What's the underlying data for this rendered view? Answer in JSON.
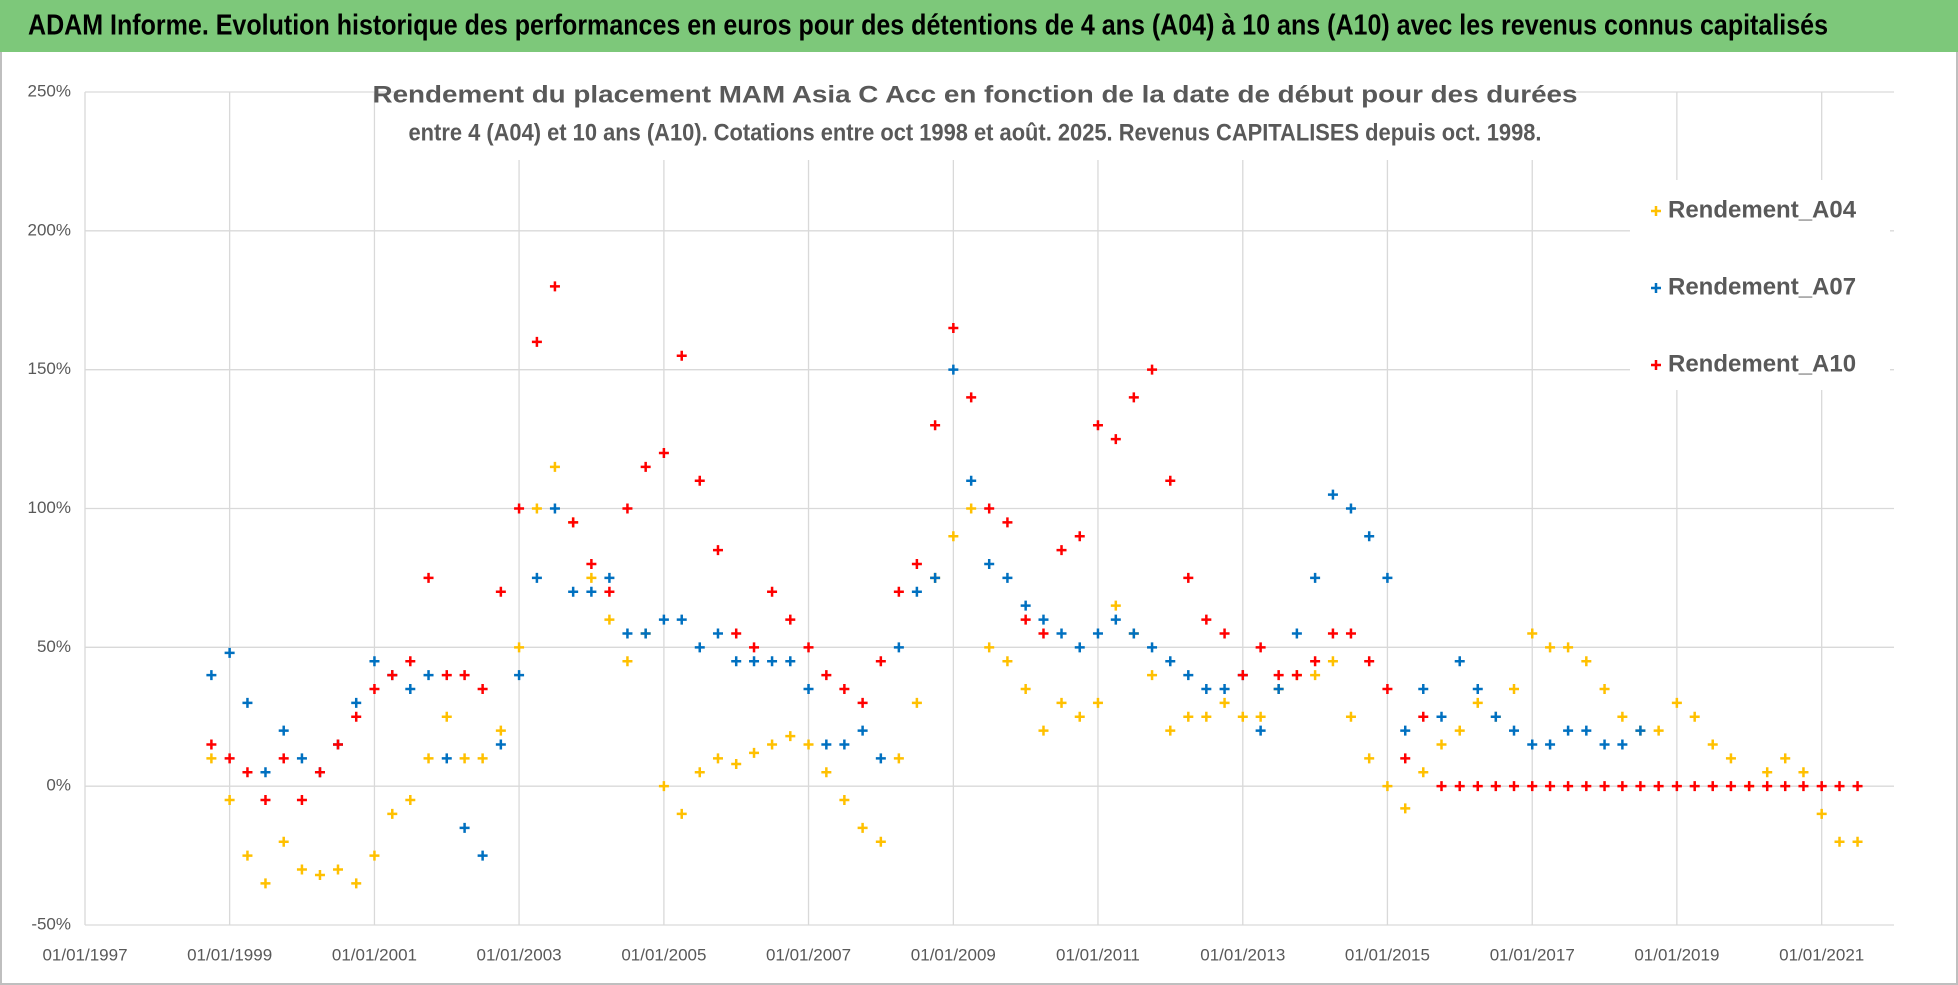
{
  "chart_data": {
    "type": "scatter",
    "banner": "ADAM Informe. Evolution historique des performances en euros pour des détentions de 4 ans (A04) à 10 ans (A10) avec les revenus connus capitalisés",
    "title": [
      "Rendement du placement MAM Asia C Acc en fonction de la date de début pour des durées",
      "entre 4 (A04) et 10 ans (A10). Cotations entre oct 1998 et août. 2025. Revenus CAPITALISES depuis oct. 1998."
    ],
    "x": [
      "1998-10-01",
      "1999-01-01",
      "1999-04-01",
      "1999-07-01",
      "1999-10-01",
      "2000-01-01",
      "2000-04-01",
      "2000-07-01",
      "2000-10-01",
      "2001-01-01",
      "2001-04-01",
      "2001-07-01",
      "2001-10-01",
      "2002-01-01",
      "2002-04-01",
      "2002-07-01",
      "2002-10-01",
      "2003-01-01",
      "2003-04-01",
      "2003-07-01",
      "2003-10-01",
      "2004-01-01",
      "2004-04-01",
      "2004-07-01",
      "2004-10-01",
      "2005-01-01",
      "2005-04-01",
      "2005-07-01",
      "2005-10-01",
      "2006-01-01",
      "2006-04-01",
      "2006-07-01",
      "2006-10-01",
      "2007-01-01",
      "2007-04-01",
      "2007-07-01",
      "2007-10-01",
      "2008-01-01",
      "2008-04-01",
      "2008-07-01",
      "2008-10-01",
      "2009-01-01",
      "2009-04-01",
      "2009-07-01",
      "2009-10-01",
      "2010-01-01",
      "2010-04-01",
      "2010-07-01",
      "2010-10-01",
      "2011-01-01",
      "2011-04-01",
      "2011-07-01",
      "2011-10-01",
      "2012-01-01",
      "2012-04-01",
      "2012-07-01",
      "2012-10-01",
      "2013-01-01",
      "2013-04-01",
      "2013-07-01",
      "2013-10-01",
      "2014-01-01",
      "2014-04-01",
      "2014-07-01",
      "2014-10-01",
      "2015-01-01",
      "2015-04-01",
      "2015-07-01",
      "2015-10-01",
      "2016-01-01",
      "2016-04-01",
      "2016-07-01",
      "2016-10-01",
      "2017-01-01",
      "2017-04-01",
      "2017-07-01",
      "2017-10-01",
      "2018-01-01",
      "2018-04-01",
      "2018-07-01",
      "2018-10-01",
      "2019-01-01",
      "2019-04-01",
      "2019-07-01",
      "2019-10-01",
      "2020-01-01",
      "2020-04-01",
      "2020-07-01",
      "2020-10-01",
      "2021-01-01",
      "2021-04-01",
      "2021-07-01"
    ],
    "series": [
      {
        "name": "Rendement_A04",
        "color": "#ffc000",
        "values": [
          10,
          -5,
          -25,
          -35,
          -20,
          -30,
          -32,
          -30,
          -35,
          -25,
          -10,
          -5,
          10,
          25,
          10,
          10,
          20,
          50,
          100,
          115,
          95,
          75,
          60,
          45,
          55,
          0,
          -10,
          5,
          10,
          8,
          12,
          15,
          18,
          15,
          5,
          -5,
          -15,
          -20,
          10,
          30,
          75,
          90,
          100,
          50,
          45,
          35,
          20,
          30,
          25,
          30,
          65,
          55,
          40,
          20,
          25,
          25,
          30,
          25,
          25,
          35,
          40,
          40,
          45,
          25,
          10,
          0,
          -8,
          5,
          15,
          20,
          30,
          25,
          35,
          55,
          50,
          50,
          45,
          35,
          25,
          20,
          20,
          30,
          25,
          15,
          10,
          0,
          5,
          10,
          5,
          -10,
          -20,
          -20
        ]
      },
      {
        "name": "Rendement_A07",
        "color": "#0070c0",
        "values": [
          40,
          48,
          30,
          5,
          20,
          10,
          5,
          15,
          30,
          45,
          40,
          35,
          40,
          10,
          -15,
          -25,
          15,
          40,
          75,
          100,
          70,
          70,
          75,
          55,
          55,
          60,
          60,
          50,
          55,
          45,
          45,
          45,
          45,
          35,
          15,
          15,
          20,
          10,
          50,
          70,
          75,
          150,
          110,
          80,
          75,
          65,
          60,
          55,
          50,
          55,
          60,
          55,
          50,
          45,
          40,
          35,
          35,
          40,
          20,
          35,
          55,
          75,
          105,
          100,
          90,
          75,
          20,
          35,
          25,
          45,
          35,
          25,
          20,
          15,
          15,
          20,
          20,
          15,
          15,
          20,
          null,
          null,
          null,
          null,
          null,
          null,
          null,
          null,
          null,
          null,
          null,
          null
        ]
      },
      {
        "name": "Rendement_A10",
        "color": "#ff0000",
        "values": [
          15,
          10,
          5,
          -5,
          10,
          -5,
          5,
          15,
          25,
          35,
          40,
          45,
          75,
          40,
          40,
          35,
          70,
          100,
          160,
          180,
          95,
          80,
          70,
          100,
          115,
          120,
          155,
          110,
          85,
          55,
          50,
          70,
          60,
          50,
          40,
          35,
          30,
          45,
          70,
          80,
          130,
          165,
          140,
          100,
          95,
          60,
          55,
          85,
          90,
          130,
          125,
          140,
          150,
          110,
          75,
          60,
          55,
          40,
          50,
          40,
          40,
          45,
          55,
          55,
          45,
          35,
          10,
          25,
          0,
          0,
          0,
          0,
          0,
          0,
          0,
          0,
          0,
          0,
          0,
          0,
          0,
          0,
          0,
          0,
          0,
          0,
          0,
          0,
          0,
          0,
          0,
          0
        ]
      }
    ],
    "xlim": [
      "1997-01-01",
      "2022-01-01"
    ],
    "xticks": [
      {
        "value": "1997-01-01",
        "label": "01/01/1997"
      },
      {
        "value": "1999-01-01",
        "label": "01/01/1999"
      },
      {
        "value": "2001-01-01",
        "label": "01/01/2001"
      },
      {
        "value": "2003-01-01",
        "label": "01/01/2003"
      },
      {
        "value": "2005-01-01",
        "label": "01/01/2005"
      },
      {
        "value": "2007-01-01",
        "label": "01/01/2007"
      },
      {
        "value": "2009-01-01",
        "label": "01/01/2009"
      },
      {
        "value": "2011-01-01",
        "label": "01/01/2011"
      },
      {
        "value": "2013-01-01",
        "label": "01/01/2013"
      },
      {
        "value": "2015-01-01",
        "label": "01/01/2015"
      },
      {
        "value": "2017-01-01",
        "label": "01/01/2017"
      },
      {
        "value": "2019-01-01",
        "label": "01/01/2019"
      },
      {
        "value": "2021-01-01",
        "label": "01/01/2021"
      }
    ],
    "ylim": [
      -50,
      250
    ],
    "yticks": [
      {
        "value": -50,
        "label": "-50%"
      },
      {
        "value": 0,
        "label": "0%"
      },
      {
        "value": 50,
        "label": "50%"
      },
      {
        "value": 100,
        "label": "100%"
      },
      {
        "value": 150,
        "label": "150%"
      },
      {
        "value": 200,
        "label": "200%"
      },
      {
        "value": 250,
        "label": "250%"
      }
    ],
    "grid": true,
    "legend": "upper right"
  }
}
